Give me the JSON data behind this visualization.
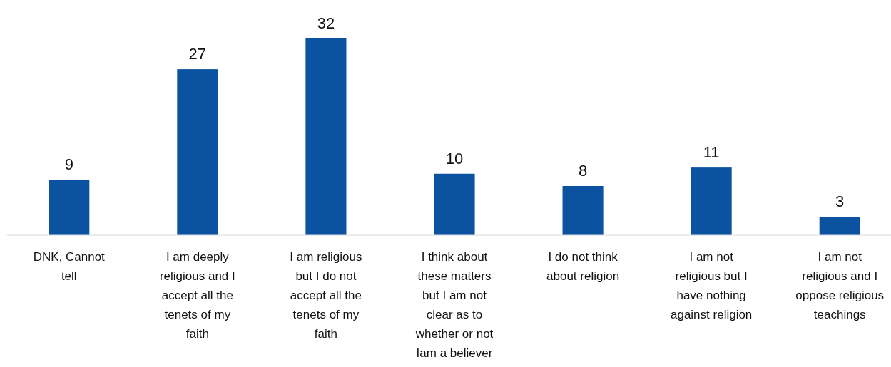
{
  "chart_data": {
    "type": "bar",
    "categories": [
      "DNK, Cannot tell",
      "I am deeply religious and I accept all the tenets of my faith",
      "I am religious but I do not accept all the tenets of my faith",
      "I think about these matters but I am not clear as to whether or not Iam a believer",
      "I do not think about religion",
      "I am not religious but I have nothing against religion",
      "I am not religious and I oppose religious teachings"
    ],
    "values": [
      9,
      27,
      32,
      10,
      8,
      11,
      3
    ],
    "color": "#0b52a0",
    "data_labels": true
  }
}
